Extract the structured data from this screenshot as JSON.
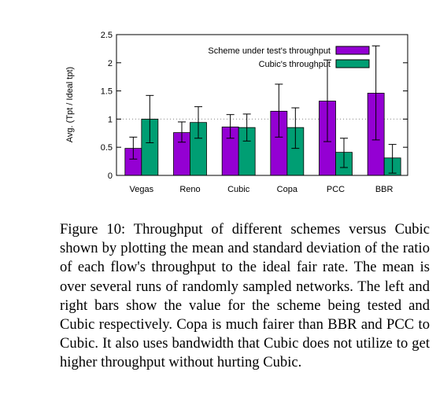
{
  "chart_data": {
    "type": "bar",
    "categories": [
      "Vegas",
      "Reno",
      "Cubic",
      "Copa",
      "PCC",
      "BBR"
    ],
    "ylabel": "Avg. (Tpt / Ideal tpt)",
    "xlabel": "",
    "ylim": [
      0,
      2.5
    ],
    "yticks": [
      "0",
      "0.5",
      "1",
      "1.5",
      "2",
      "2.5"
    ],
    "reference_line": 1,
    "grid": false,
    "legend_position": "top-right",
    "series": [
      {
        "name": "Scheme under test's throughput",
        "color": "#9400d3",
        "values": [
          0.48,
          0.76,
          0.86,
          1.14,
          1.32,
          1.46
        ],
        "error_low": [
          0.29,
          0.59,
          0.66,
          0.68,
          0.6,
          0.63
        ],
        "error_high": [
          0.68,
          0.95,
          1.08,
          1.62,
          2.05,
          2.3
        ]
      },
      {
        "name": "Cubic's throughput",
        "color": "#009e73",
        "values": [
          1.0,
          0.94,
          0.85,
          0.85,
          0.41,
          0.31
        ],
        "error_low": [
          0.58,
          0.66,
          0.61,
          0.48,
          0.14,
          0.04
        ],
        "error_high": [
          1.42,
          1.22,
          1.09,
          1.2,
          0.66,
          0.55
        ]
      }
    ]
  },
  "caption": "Figure 10: Throughput of different schemes versus Cubic shown by plotting the mean and standard deviation of the ratio of each flow's throughput to the ideal fair rate. The mean is over several runs of randomly sampled networks. The left and right bars show the value for the scheme being tested and Cubic respectively. Copa is much fairer than BBR and PCC to Cubic. It also uses bandwidth that Cubic does not utilize to get higher throughput without hurting Cubic."
}
